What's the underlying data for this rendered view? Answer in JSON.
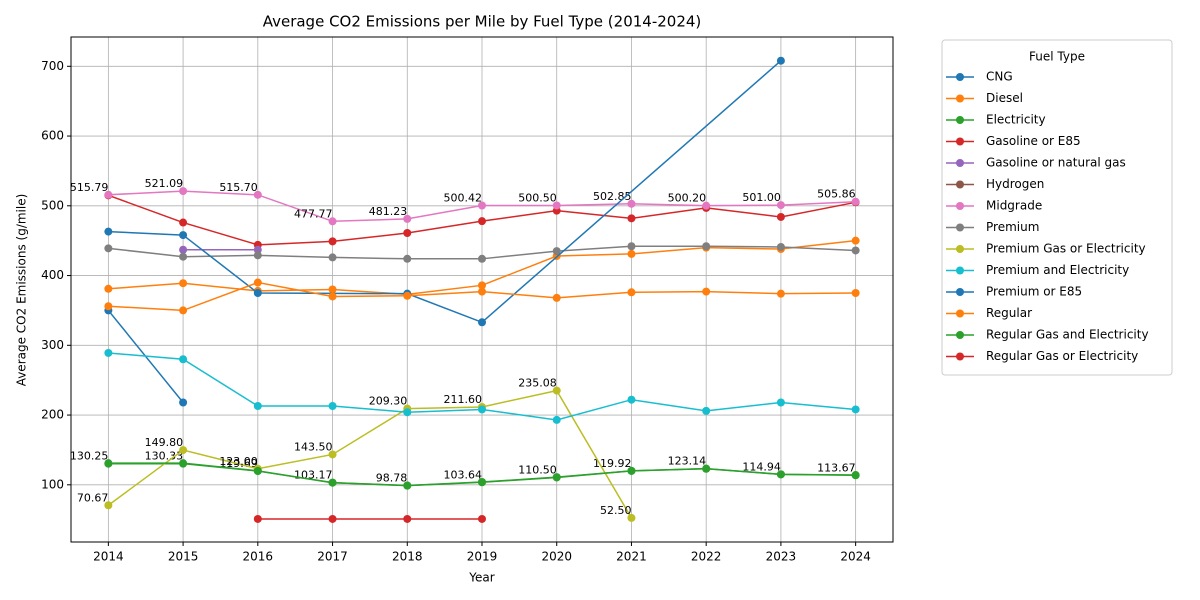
{
  "chart_data": {
    "type": "line",
    "title": "Average CO2 Emissions per Mile by Fuel Type (2014-2024)",
    "x_label": "Year",
    "y_label": "Average CO2 Emissions (g/mile)",
    "legend_title": "Fuel Type",
    "legend_position": "outside right",
    "grid": true,
    "xlim": [
      2013.5,
      2024.5
    ],
    "xticks": [
      2014,
      2015,
      2016,
      2017,
      2018,
      2019,
      2020,
      2021,
      2022,
      2023,
      2024
    ],
    "ylim": [
      18,
      742
    ],
    "yticks": [
      100,
      200,
      300,
      400,
      500,
      600,
      700
    ],
    "series": [
      {
        "name": "CNG",
        "color": "#1f77b4",
        "x": [
          2014,
          2015
        ],
        "values": [
          350,
          218
        ]
      },
      {
        "name": "Diesel",
        "color": "#ff7f0e",
        "x": [
          2014,
          2015,
          2016,
          2017,
          2018,
          2019,
          2020,
          2021,
          2022,
          2023,
          2024
        ],
        "values": [
          381,
          389,
          378,
          380,
          373,
          386,
          428,
          431,
          440,
          438,
          450
        ]
      },
      {
        "name": "Electricity",
        "color": "#2ca02c",
        "x": [
          2014,
          2015,
          2016,
          2017,
          2018,
          2019,
          2020,
          2021,
          2022,
          2023,
          2024
        ],
        "values": [
          130.25,
          130.33,
          119.69,
          103.17,
          98.78,
          103.64,
          110.5,
          119.92,
          123.14,
          114.94,
          113.67
        ],
        "value_labels": [
          "130.25",
          "130.33",
          "119.69",
          "103.17",
          "98.78",
          "103.64",
          "110.50",
          "119.92",
          "123.14",
          "114.94",
          "113.67"
        ]
      },
      {
        "name": "Gasoline or E85",
        "color": "#d62728",
        "x": [
          2014,
          2015,
          2016,
          2017,
          2018,
          2019,
          2020,
          2021,
          2022,
          2023,
          2024
        ],
        "values": [
          515,
          476,
          444,
          449,
          461,
          478,
          493,
          482,
          497,
          484,
          505
        ]
      },
      {
        "name": "Gasoline or natural gas",
        "color": "#9467bd",
        "x": [
          2015,
          2016
        ],
        "values": [
          437,
          437
        ]
      },
      {
        "name": "Hydrogen",
        "color": "#8c564b",
        "x": [],
        "values": []
      },
      {
        "name": "Midgrade",
        "color": "#e377c2",
        "x": [
          2014,
          2015,
          2016,
          2017,
          2018,
          2019,
          2020,
          2021,
          2022,
          2023,
          2024
        ],
        "values": [
          515.79,
          521.09,
          515.7,
          477.77,
          481.23,
          500.42,
          500.5,
          502.85,
          500.2,
          501,
          505.86
        ],
        "value_labels": [
          "515.79",
          "521.09",
          "515.70",
          "477.77",
          "481.23",
          "500.42",
          "500.50",
          "502.85",
          "500.20",
          "501.00",
          "505.86"
        ]
      },
      {
        "name": "Premium",
        "color": "#7f7f7f",
        "x": [
          2014,
          2015,
          2016,
          2017,
          2018,
          2019,
          2020,
          2021,
          2022,
          2023,
          2024
        ],
        "values": [
          439,
          427,
          429,
          426,
          424,
          424,
          435,
          442,
          442,
          441,
          436
        ]
      },
      {
        "name": "Premium Gas or Electricity",
        "color": "#bcbd22",
        "x": [
          2014,
          2015,
          2016,
          2017,
          2018,
          2019,
          2020,
          2021
        ],
        "values": [
          70.67,
          149.8,
          123,
          143.5,
          209.3,
          211.6,
          235.08,
          52.5
        ],
        "value_labels": [
          "70.67",
          "149.80",
          "123.00",
          "143.50",
          "209.30",
          "211.60",
          "235.08",
          "52.50"
        ]
      },
      {
        "name": "Premium and Electricity",
        "color": "#17becf",
        "x": [
          2014,
          2015,
          2016,
          2017,
          2018,
          2019,
          2020,
          2021,
          2022,
          2023,
          2024
        ],
        "values": [
          289,
          280,
          213,
          213,
          204,
          208,
          193,
          222,
          206,
          218,
          208
        ]
      },
      {
        "name": "Premium or E85",
        "color": "#1f77b4",
        "x": [
          2014,
          2015,
          2016,
          2018,
          2019,
          2023
        ],
        "values": [
          463,
          458,
          375,
          374,
          333,
          708
        ]
      },
      {
        "name": "Regular",
        "color": "#ff7f0e",
        "x": [
          2014,
          2015,
          2016,
          2017,
          2018,
          2019,
          2020,
          2021,
          2022,
          2023,
          2024
        ],
        "values": [
          356,
          350,
          390,
          370,
          371,
          377,
          368,
          376,
          377,
          374,
          375
        ]
      },
      {
        "name": "Regular Gas and Electricity",
        "color": "#2ca02c",
        "x": [
          2014,
          2015,
          2016,
          2017,
          2018,
          2019,
          2020,
          2021,
          2022,
          2023,
          2024
        ],
        "values": [
          131,
          131,
          120,
          103,
          99,
          104,
          111,
          120,
          123,
          115,
          114
        ]
      },
      {
        "name": "Regular Gas or Electricity",
        "color": "#d62728",
        "x": [
          2016,
          2017,
          2018,
          2019
        ],
        "values": [
          51,
          51,
          51,
          51
        ]
      }
    ]
  }
}
